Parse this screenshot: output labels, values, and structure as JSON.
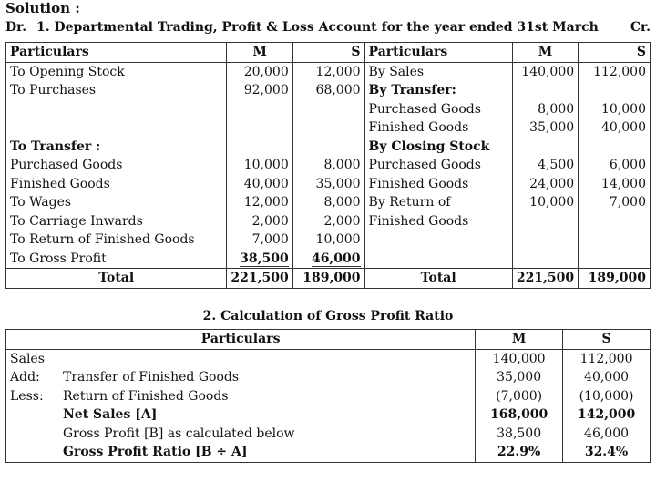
{
  "solution_label": "Solution :",
  "heading": {
    "dr": "Dr.",
    "title": "1. Departmental Trading, Profit & Loss Account for the year ended 31st March",
    "cr": "Cr."
  },
  "trading": {
    "headers": [
      "Particulars",
      "M",
      "S",
      "Particulars",
      "M",
      "S"
    ],
    "rows": [
      [
        "To Opening Stock",
        "20,000",
        "12,000",
        "By Sales",
        "140,000",
        "112,000"
      ],
      [
        "To Purchases",
        "92,000",
        "68,000",
        "By Transfer:",
        "",
        ""
      ],
      [
        "",
        "",
        "",
        "Purchased Goods",
        "8,000",
        "10,000"
      ],
      [
        "",
        "",
        "",
        "Finished Goods",
        "35,000",
        "40,000"
      ],
      [
        "To Transfer :",
        "",
        "",
        "By Closing Stock",
        "",
        ""
      ],
      [
        "Purchased Goods",
        "10,000",
        "8,000",
        "Purchased Goods",
        "4,500",
        "6,000"
      ],
      [
        "Finished Goods",
        "40,000",
        "35,000",
        "Finished Goods",
        "24,000",
        "14,000"
      ],
      [
        "To Wages",
        "12,000",
        "8,000",
        "By Return of",
        "10,000",
        "7,000"
      ],
      [
        "To Carriage Inwards",
        "2,000",
        "2,000",
        "Finished Goods",
        "",
        ""
      ],
      [
        "To Return of Finished Goods",
        "7,000",
        "10,000",
        "",
        "",
        ""
      ],
      [
        "To Gross Profit",
        "38,500",
        "46,000",
        "",
        "",
        ""
      ]
    ],
    "total": [
      "Total",
      "221,500",
      "189,000",
      "Total",
      "221,500",
      "189,000"
    ]
  },
  "calc_title": "2. Calculation of Gross Profit Ratio",
  "ratio": {
    "headers": [
      "Particulars",
      "M",
      "S"
    ],
    "rows": [
      {
        "prefix": "Sales",
        "label": "",
        "m": "140,000",
        "s": "112,000",
        "bold": false
      },
      {
        "prefix": "Add:",
        "label": "Transfer of Finished Goods",
        "m": "35,000",
        "s": "40,000",
        "bold": false
      },
      {
        "prefix": "Less:",
        "label": "Return of Finished Goods",
        "m": "(7,000)",
        "s": "(10,000)",
        "bold": false
      },
      {
        "prefix": "",
        "label": "Net Sales [A]",
        "m": "168,000",
        "s": "142,000",
        "bold": true
      },
      {
        "prefix": "",
        "label": "Gross Profit [B] as calculated below",
        "m": "38,500",
        "s": "46,000",
        "bold": false
      },
      {
        "prefix": "",
        "label": "Gross Profit Ratio [B ÷ A]",
        "m": "22.9%",
        "s": "32.4%",
        "bold": true
      }
    ]
  }
}
